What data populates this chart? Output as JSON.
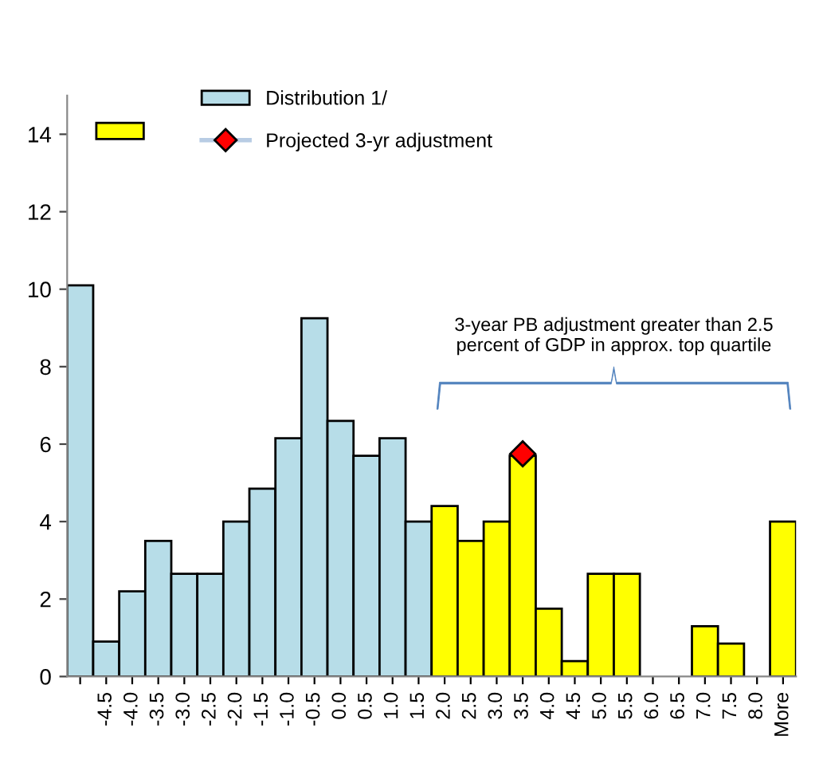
{
  "chart_data": {
    "type": "bar",
    "categories": [
      null,
      "-4.5",
      "-4.0",
      "-3.5",
      "-3.0",
      "-2.5",
      "-2.0",
      "-1.5",
      "-1.0",
      "-0.5",
      "0.0",
      "0.5",
      "1.0",
      "1.5",
      "2.0",
      "2.5",
      "3.0",
      "3.5",
      "4.0",
      "4.5",
      "5.0",
      "5.5",
      "6.0",
      "6.5",
      "7.0",
      "7.5",
      "8.0",
      "More"
    ],
    "series": [
      {
        "name": "Distribution 1/",
        "color": "#b7dde8",
        "values": [
          10.1,
          0.9,
          2.2,
          3.5,
          2.65,
          2.65,
          4.0,
          4.85,
          6.15,
          9.25,
          6.6,
          5.7,
          6.15,
          4.0,
          null,
          null,
          null,
          null,
          null,
          null,
          null,
          null,
          null,
          null,
          null,
          null,
          null,
          null
        ]
      },
      {
        "color": "#ffff00",
        "values": [
          null,
          null,
          null,
          null,
          null,
          null,
          null,
          null,
          null,
          null,
          null,
          null,
          null,
          null,
          4.4,
          3.5,
          4.0,
          5.7,
          1.75,
          0.4,
          2.65,
          2.65,
          0,
          0,
          1.3,
          0.85,
          0,
          4.0
        ]
      },
      {
        "name": "Projected 3-yr adjustment",
        "type": "scatter",
        "marker": "diamond",
        "color": "#ff0000",
        "x": [
          "3.5"
        ],
        "values": [
          5.75
        ]
      }
    ],
    "ylim": [
      0,
      15
    ],
    "yticks": [
      0,
      2,
      4,
      6,
      8,
      10,
      12,
      14
    ],
    "grid": false,
    "legend": "top left",
    "annotations": [
      "3-year PB adjustment greater than 2.5 percent of GDP in approx. top quartile"
    ]
  }
}
